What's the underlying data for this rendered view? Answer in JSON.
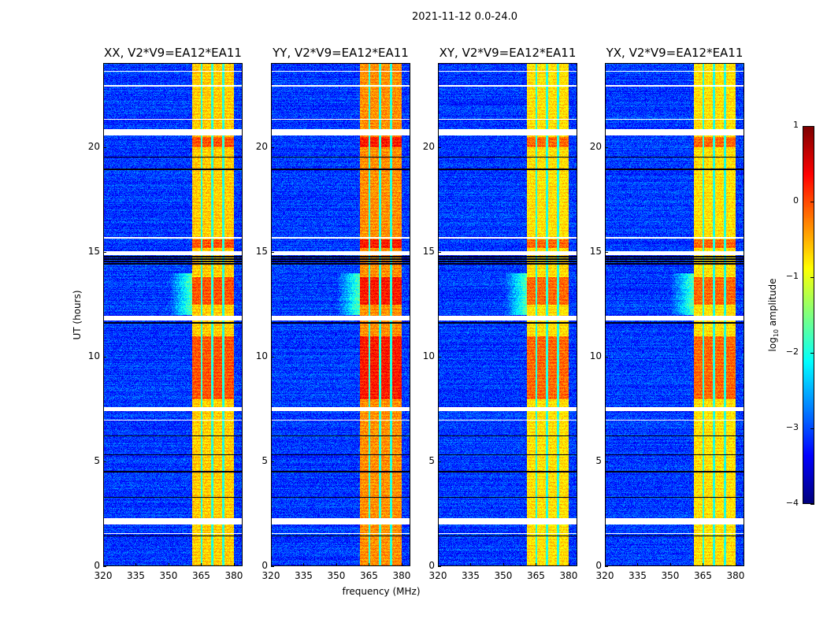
{
  "suptitle": "2021-11-12 0.0-24.0",
  "chart_data": {
    "type": "heatmap",
    "title": "2021-11-12 0.0-24.0",
    "xlabel": "frequency (MHz)",
    "ylabel": "UT (hours)",
    "xlim": [
      320,
      384
    ],
    "ylim": [
      0,
      24
    ],
    "xticks": [
      320,
      335,
      350,
      365,
      380
    ],
    "yticks": [
      0,
      5,
      10,
      15,
      20
    ],
    "panels": [
      {
        "title": "XX, V2*V9=EA12*EA11",
        "band_level": -0.8
      },
      {
        "title": "YY, V2*V9=EA12*EA11",
        "band_level": -0.5
      },
      {
        "title": "XY, V2*V9=EA12*EA11",
        "band_level": -0.9
      },
      {
        "title": "YX, V2*V9=EA12*EA11",
        "band_level": -0.9
      }
    ],
    "background_level": -3.1,
    "rfi_band_mhz": [
      360.5,
      380
    ],
    "band_notches_mhz": [
      365,
      370,
      375
    ],
    "bright_periods_hours": [
      [
        12.5,
        13.8
      ],
      [
        8.0,
        11.0
      ],
      [
        15.2,
        15.6
      ],
      [
        20.0,
        20.5
      ]
    ],
    "flagged_hours": [
      [
        20.55,
        20.85
      ],
      [
        15.65,
        15.72
      ],
      [
        14.85,
        15.05
      ],
      [
        11.75,
        11.95
      ],
      [
        7.4,
        7.6
      ],
      [
        6.95,
        7.02
      ],
      [
        2.0,
        2.3
      ],
      [
        1.55,
        1.6
      ],
      [
        22.9,
        22.95
      ],
      [
        23.6,
        23.65
      ],
      [
        21.3,
        21.35
      ]
    ],
    "dark_rows_hours": [
      [
        14.4,
        14.8
      ],
      [
        20.1,
        20.15
      ],
      [
        19.5,
        19.55
      ],
      [
        18.9,
        19.0
      ],
      [
        6.2,
        6.25
      ],
      [
        5.3,
        5.35
      ],
      [
        5.0,
        5.05
      ],
      [
        4.5,
        4.6
      ],
      [
        4.0,
        4.05
      ],
      [
        3.3,
        3.35
      ],
      [
        1.4,
        1.5
      ],
      [
        11.6,
        11.7
      ],
      [
        13.9,
        13.95
      ]
    ],
    "colorbar": {
      "label": "log10 amplitude",
      "range": [
        -4,
        1
      ],
      "ticks": [
        1,
        0,
        -1,
        -2,
        -3,
        -4
      ],
      "tick_labels": [
        "1",
        "0",
        "−1",
        "−2",
        "−3",
        "−4"
      ],
      "colormap": "jet"
    }
  }
}
